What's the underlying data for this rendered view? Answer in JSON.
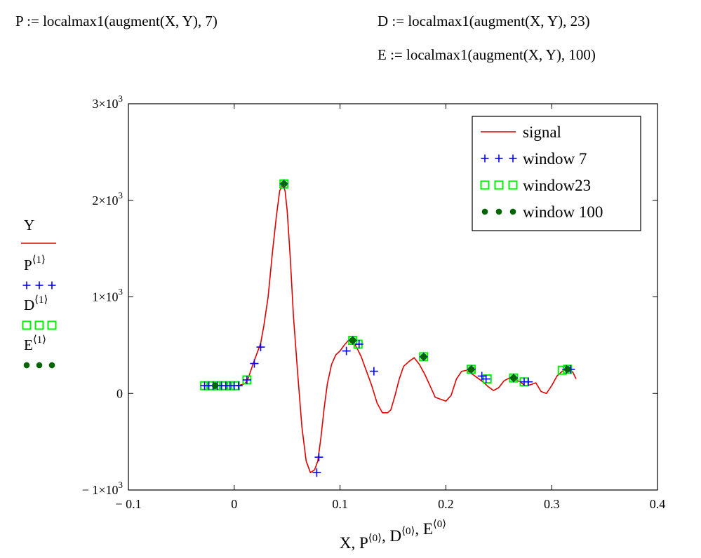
{
  "formulas": {
    "p": "P := localmax1(augment(X, Y), 7)",
    "d": "D := localmax1(augment(X, Y), 23)",
    "e": "E := localmax1(augment(X, Y), 100)"
  },
  "colors": {
    "signal": "#e00000",
    "window7": "#0000ee",
    "window23": "#00ee00",
    "window100": "#006400"
  },
  "chart_data": {
    "type": "line",
    "xlim": [
      -0.1,
      0.4
    ],
    "ylim": [
      -1000,
      3000
    ],
    "x_ticks": [
      {
        "value": -0.1,
        "label": "− 0.1"
      },
      {
        "value": 0,
        "label": "0"
      },
      {
        "value": 0.1,
        "label": "0.1"
      },
      {
        "value": 0.2,
        "label": "0.2"
      },
      {
        "value": 0.3,
        "label": "0.3"
      },
      {
        "value": 0.4,
        "label": "0.4"
      }
    ],
    "y_ticks": [
      {
        "value": -1000,
        "base": "− 1×10",
        "exp": "3"
      },
      {
        "value": 0,
        "base": "0",
        "exp": ""
      },
      {
        "value": 1000,
        "base": "1×10",
        "exp": "3"
      },
      {
        "value": 2000,
        "base": "2×10",
        "exp": "3"
      },
      {
        "value": 3000,
        "base": "3×10",
        "exp": "3"
      }
    ],
    "xlabel": {
      "base": "X, P",
      "parts": [
        {
          "t": "X, P",
          "sup": "⟨0⟩"
        },
        {
          "t": ", D",
          "sup": "⟨0⟩"
        },
        {
          "t": ", E",
          "sup": "⟨0⟩"
        }
      ]
    },
    "left_traces": [
      {
        "name": "Y",
        "sup": "",
        "style": "line",
        "color": "#e00000"
      },
      {
        "name": "P",
        "sup": "⟨1⟩",
        "style": "plus",
        "color": "#0000ee"
      },
      {
        "name": "D",
        "sup": "⟨1⟩",
        "style": "square",
        "color": "#00ee00"
      },
      {
        "name": "E",
        "sup": "⟨1⟩",
        "style": "dot",
        "color": "#006400"
      }
    ],
    "legend": {
      "position": "top-right",
      "entries": [
        {
          "label": "signal",
          "style": "line",
          "color": "#e00000"
        },
        {
          "label": "window 7",
          "style": "plus",
          "color": "#0000ee"
        },
        {
          "label": "window23",
          "style": "square",
          "color": "#00ee00"
        },
        {
          "label": "window 100",
          "style": "dot",
          "color": "#006400"
        }
      ]
    },
    "series": [
      {
        "name": "signal",
        "style": "line",
        "x": [
          -0.03,
          -0.02,
          -0.01,
          0,
          0.005,
          0.01,
          0.013,
          0.018,
          0.022,
          0.025,
          0.028,
          0.032,
          0.036,
          0.04,
          0.043,
          0.046,
          0.048,
          0.05,
          0.053,
          0.056,
          0.06,
          0.064,
          0.068,
          0.072,
          0.076,
          0.079,
          0.082,
          0.085,
          0.088,
          0.092,
          0.096,
          0.1,
          0.104,
          0.108,
          0.112,
          0.116,
          0.12,
          0.125,
          0.13,
          0.135,
          0.14,
          0.145,
          0.148,
          0.152,
          0.156,
          0.16,
          0.165,
          0.17,
          0.175,
          0.18,
          0.185,
          0.19,
          0.195,
          0.2,
          0.205,
          0.21,
          0.215,
          0.22,
          0.225,
          0.23,
          0.235,
          0.24,
          0.245,
          0.25,
          0.255,
          0.26,
          0.265,
          0.27,
          0.275,
          0.28,
          0.285,
          0.29,
          0.295,
          0.3,
          0.305,
          0.31,
          0.315,
          0.32,
          0.323
        ],
        "y": [
          80,
          80,
          80,
          80,
          85,
          100,
          150,
          310,
          430,
          520,
          700,
          1000,
          1450,
          1850,
          2100,
          2160,
          2100,
          1900,
          1400,
          800,
          200,
          -350,
          -700,
          -820,
          -790,
          -700,
          -450,
          -150,
          100,
          300,
          400,
          440,
          500,
          550,
          540,
          470,
          380,
          230,
          80,
          -100,
          -200,
          -200,
          -170,
          -20,
          150,
          280,
          330,
          370,
          300,
          200,
          80,
          -40,
          -60,
          -80,
          -20,
          150,
          230,
          240,
          200,
          160,
          120,
          70,
          30,
          60,
          130,
          160,
          150,
          120,
          80,
          90,
          110,
          20,
          0,
          80,
          180,
          230,
          260,
          220,
          150
        ]
      },
      {
        "name": "window 7",
        "style": "plus",
        "x": [
          -0.028,
          -0.024,
          -0.02,
          -0.016,
          -0.012,
          -0.008,
          -0.004,
          0,
          0.004,
          0.012,
          0.019,
          0.025,
          0.047,
          0.078,
          0.08,
          0.106,
          0.112,
          0.118,
          0.132,
          0.179,
          0.224,
          0.234,
          0.238,
          0.264,
          0.274,
          0.278,
          0.314,
          0.318
        ],
        "y": [
          80,
          80,
          80,
          80,
          80,
          80,
          80,
          80,
          80,
          140,
          310,
          480,
          2170,
          -820,
          -660,
          440,
          550,
          510,
          230,
          380,
          250,
          180,
          150,
          160,
          120,
          120,
          250,
          250
        ]
      },
      {
        "name": "window23",
        "style": "square",
        "x": [
          -0.028,
          -0.022,
          -0.016,
          -0.01,
          -0.004,
          0.001,
          0.012,
          0.047,
          0.112,
          0.117,
          0.179,
          0.224,
          0.239,
          0.264,
          0.274,
          0.31,
          0.315
        ],
        "y": [
          80,
          80,
          80,
          80,
          80,
          80,
          140,
          2170,
          550,
          510,
          380,
          250,
          150,
          160,
          120,
          240,
          250
        ]
      },
      {
        "name": "window 100",
        "style": "dot",
        "x": [
          -0.018,
          0.047,
          0.112,
          0.179,
          0.224,
          0.264,
          0.315
        ],
        "y": [
          80,
          2170,
          550,
          380,
          250,
          160,
          250
        ]
      }
    ]
  }
}
